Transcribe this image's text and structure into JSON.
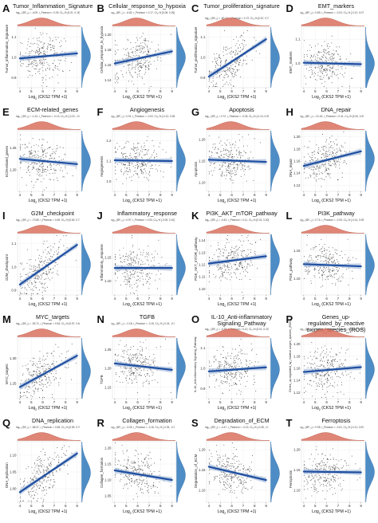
{
  "figure": {
    "xlabel_prefix": "Log",
    "xlabel_sub": "2",
    "xlabel_suffix": " (CKS2 TPM +1)",
    "colors": {
      "points": "#333333",
      "fit": "#1f4fa0",
      "ci": "#9fb6d8",
      "top_density": "#d9715f",
      "right_density": "#3b7fbf"
    }
  },
  "chart_data": [
    {
      "letter": "A",
      "type": "scatter",
      "title": "Tumor_Inflammation_Signature",
      "ylabel": "Tumor_Inflammation_Signature",
      "stat": "log₁₀ (BF₀₁) = -4.09, r_Pearson = 0.09, CI₉₅% [0.01, 0.18], n_pairs = 409",
      "xticks": [
        4,
        5,
        6,
        7,
        8,
        9
      ],
      "yticks": [
        "0.9",
        "1.0",
        "1.1"
      ],
      "ylim": [
        0.85,
        1.15
      ],
      "fit": [
        0.995,
        1.02
      ]
    },
    {
      "letter": "B",
      "type": "scatter",
      "title": "Cellular_response_to_hypoxia",
      "ylabel": "Cellular_response_to_hypoxia",
      "stat": "log₁₀ (BF₀₁) = -6.82, r_Pearson = 0.17, CI₉₅% [0.08, 0.26], n_pairs = 409",
      "xticks": [
        4,
        5,
        6,
        7,
        8,
        9
      ],
      "yticks": [
        "1.14",
        "1.16",
        "1.18",
        "1.20"
      ],
      "ylim": [
        1.13,
        1.21
      ],
      "fit": [
        1.162,
        1.178
      ]
    },
    {
      "letter": "C",
      "type": "scatter",
      "title": "Tumor_proliferation_signature",
      "ylabel": "Tumor_proliferation_signature",
      "stat": "log₁₀ (BF₀₁) = -80.12, r_Pearson = 0.72, CI₉₅% [0.67, 0.76], n_pairs = 409",
      "xticks": [
        4,
        5,
        6,
        7,
        8,
        9
      ],
      "yticks": [
        "0.9",
        "1.0",
        "1.1"
      ],
      "ylim": [
        0.85,
        1.15
      ],
      "fit": [
        0.905,
        1.09
      ]
    },
    {
      "letter": "D",
      "type": "scatter",
      "title": "EMT_markers",
      "ylabel": "EMT_markers",
      "stat": "log₁₀ (BF₀₁) = 0.89, r_Pearson = -0.03, CI₉₅% [-0.12, 0.07], n_pairs = 409",
      "xticks": [
        4,
        5,
        6,
        7,
        8,
        9
      ],
      "yticks": [
        "1.0",
        "1.1"
      ],
      "ylim": [
        0.9,
        1.15
      ],
      "fit": [
        1.003,
        0.997
      ]
    },
    {
      "letter": "E",
      "type": "scatter",
      "title": "ECM-related_genes",
      "ylabel": "ECM-related_genes",
      "stat": "log₁₀ (BF₀₁) = -1.24, r_Pearson = -0.13, CI₉₅% [-0.22, -0.03], n_pairs = 409",
      "xticks": [
        4,
        5,
        6,
        7,
        8,
        9
      ],
      "yticks": [
        "1.20",
        "1.25"
      ],
      "ylim": [
        1.15,
        1.29
      ],
      "fit": [
        1.225,
        1.213
      ]
    },
    {
      "letter": "F",
      "type": "scatter",
      "title": "Angiogenesis",
      "ylabel": "Angiogenesis",
      "stat": "log₁₀ (BF₀₁) = 0.91, r_Pearson = -0.02, CI₉₅% [-0.12, 0.08], n_pairs = 409",
      "xticks": [
        4,
        5,
        6,
        7,
        8,
        9
      ],
      "yticks": [
        "1.0",
        "1.1",
        "1.2"
      ],
      "ylim": [
        0.95,
        1.25
      ],
      "fit": [
        1.104,
        1.1
      ]
    },
    {
      "letter": "G",
      "type": "scatter",
      "title": "Apoptosis",
      "ylabel": "Apoptosis",
      "stat": "log₁₀ (BF₀₁) = 0.72, r_Pearson = -0.05, CI₉₅% [-0.14, 0.05], n_pairs = 409",
      "xticks": [
        4,
        5,
        6,
        7,
        8,
        9
      ],
      "yticks": [
        "1.10",
        "1.15",
        "1.20"
      ],
      "ylim": [
        1.08,
        1.22
      ],
      "fit": [
        1.153,
        1.148
      ]
    },
    {
      "letter": "H",
      "type": "scatter",
      "title": "DNA_repair",
      "ylabel": "DNA_repair",
      "stat": "log₁₀ (BF₀₁) = -21.43, r_Pearson = 0.41, CI₉₅% [0.33, 0.49], n_pairs = 409",
      "xticks": [
        4,
        5,
        6,
        7,
        8,
        9
      ],
      "yticks": [
        "1.12",
        "1.14",
        "1.16",
        "1.18",
        "1.20"
      ],
      "ylim": [
        1.11,
        1.21
      ],
      "fit": [
        1.152,
        1.176
      ]
    },
    {
      "letter": "I",
      "type": "scatter",
      "title": "G2M_checkpoint",
      "ylabel": "G2M_checkpoint",
      "stat": "log₁₀ (BF₀₁) = -70.85, r_Pearson = 0.69, CI₉₅% [0.63, 0.73], n_pairs = 409",
      "xticks": [
        4,
        5,
        6,
        7,
        8,
        9
      ],
      "yticks": [
        "0.9",
        "1.0",
        "1.1"
      ],
      "ylim": [
        0.88,
        1.14
      ],
      "fit": [
        0.925,
        1.095
      ]
    },
    {
      "letter": "J",
      "type": "scatter",
      "title": "Inflammatory_response",
      "ylabel": "Inflammatory_response",
      "stat": "log₁₀ (BF₀₁) = 0.97, r_Pearson = 0.00, CI₉₅% [-0.09, 0.10], n_pairs = 409",
      "xticks": [
        4,
        5,
        6,
        7,
        8,
        9
      ],
      "yticks": [
        "1.10",
        "1.15"
      ],
      "ylim": [
        1.07,
        1.2
      ],
      "fit": [
        1.128,
        1.128
      ]
    },
    {
      "letter": "K",
      "type": "scatter",
      "title": "PI3K_AKT_mTOR_pathway",
      "ylabel": "PI3K_AKT_mTOR_pathway",
      "stat": "log₁₀ (BF₀₁) = -0.43, r_Pearson = 0.11, CI₉₅% [0.01, 0.20], n_pairs = 409",
      "xticks": [
        4,
        5,
        6,
        7,
        8,
        9
      ],
      "yticks": [
        "1.10",
        "1.11",
        "1.12",
        "1.13",
        "1.14"
      ],
      "ylim": [
        1.095,
        1.145
      ],
      "fit": [
        1.121,
        1.127
      ]
    },
    {
      "letter": "L",
      "type": "scatter",
      "title": "PI3K_pathway",
      "ylabel": "PI3K_pathway",
      "stat": "log₁₀ (BF₀₁) = 0.74, r_Pearson = -0.05, CI₉₅% [-0.14, 0.05], n_pairs = 409",
      "xticks": [
        4,
        5,
        6,
        7,
        8,
        9
      ],
      "yticks": [
        "1.10",
        "1.15"
      ],
      "ylim": [
        1.07,
        1.18
      ],
      "fit": [
        1.126,
        1.122
      ]
    },
    {
      "letter": "M",
      "type": "scatter",
      "title": "MYC_targets",
      "ylabel": "MYC_targets",
      "stat": "log₁₀ (BF₀₁) = -53.71, r_Pearson = 0.63, CI₉₅% [0.57, 0.68], n_pairs = 409",
      "xticks": [
        4,
        5,
        6,
        7,
        8,
        9
      ],
      "yticks": [
        "1.25",
        "1.30"
      ],
      "ylim": [
        1.22,
        1.34
      ],
      "fit": [
        1.243,
        1.305
      ]
    },
    {
      "letter": "N",
      "type": "scatter",
      "title": "TGFB",
      "ylabel": "TGFB",
      "stat": "log₁₀ (BF₀₁) = -2.18, r_Pearson = -0.15, CI₉₅% [-0.24, -0.05], n_pairs = 409",
      "xticks": [
        4,
        5,
        6,
        7,
        8,
        9
      ],
      "yticks": [
        "1.15",
        "1.20",
        "1.25"
      ],
      "ylim": [
        1.12,
        1.28
      ],
      "fit": [
        1.213,
        1.196
      ]
    },
    {
      "letter": "O",
      "type": "scatter",
      "title": "IL-10_Anti-inflammatory Signaling_Pathway",
      "ylabel": "IL-10_Anti-inflammatory Signaling_Pathway",
      "stat": "log₁₀ (BF₀₁) = -0.28, r_Pearson = 0.10, CI₉₅% [0.01, 0.20], n_pairs = 409",
      "xticks": [
        4,
        5,
        6,
        7,
        8,
        9
      ],
      "yticks": [
        "0.9",
        "1.0",
        "1.1"
      ],
      "ylim": [
        0.85,
        1.15
      ],
      "fit": [
        0.985,
        1.005
      ]
    },
    {
      "letter": "P",
      "type": "scatter",
      "title": "Genes_up-regulated_by_reactive oxigen_species_(ROS)",
      "ylabel": "Genes_up-regulated_by_reactive oxigen_species_(ROS)",
      "stat": "log₁₀ (BF₀₁) = -0.61, r_Pearson = 0.12, CI₉₅% [0.02, 0.21], n_pairs = 409",
      "xticks": [
        4,
        5,
        6,
        7,
        8,
        9
      ],
      "yticks": [
        "1.12",
        "1.14",
        "1.16",
        "1.18",
        "1.20"
      ],
      "ylim": [
        1.11,
        1.21
      ],
      "fit": [
        1.154,
        1.162
      ]
    },
    {
      "letter": "Q",
      "type": "scatter",
      "title": "DNA_replication",
      "ylabel": "DNA_replication",
      "stat": "log₁₀ (BF₀₁) = -58.37, r_Pearson = 0.65, CI₉₅% [0.59, 0.70], n_pairs = 409",
      "xticks": [
        4,
        5,
        6,
        7,
        8,
        9
      ],
      "yticks": [
        "1.00",
        "1.05",
        "1.10"
      ],
      "ylim": [
        0.96,
        1.14
      ],
      "fit": [
        0.99,
        1.105
      ]
    },
    {
      "letter": "R",
      "type": "scatter",
      "title": "Collagen_formation",
      "ylabel": "Collagen_formation",
      "stat": "log₁₀ (BF₀₁) = -3.05, r_Pearson = -0.16, CI₉₅% [-0.25, -0.06], n_pairs = 409",
      "xticks": [
        4,
        5,
        6,
        7,
        8,
        9
      ],
      "yticks": [
        "1.05",
        "1.10",
        "1.15",
        "1.20"
      ],
      "ylim": [
        1.03,
        1.22
      ],
      "fit": [
        1.13,
        1.1
      ]
    },
    {
      "letter": "S",
      "type": "scatter",
      "title": "Degradation_of_ECM",
      "ylabel": "Degradation_of_ECM",
      "stat": "log₁₀ (BF₀₁) = -4.47, r_Pearson = -0.19, CI₉₅% [-0.28, -0.10], n_pairs = 409",
      "xticks": [
        4,
        5,
        6,
        7,
        8,
        9
      ],
      "yticks": [
        "1.10",
        "1.15",
        "1.20"
      ],
      "ylim": [
        1.07,
        1.22
      ],
      "fit": [
        1.158,
        1.125
      ]
    },
    {
      "letter": "T",
      "type": "scatter",
      "title": "Ferroptosis",
      "ylabel": "Ferroptosis",
      "stat": "log₁₀ (BF₀₁) = 0.95, r_Pearson = -0.01, CI₉₅% [-0.11, 0.09], n_pairs = 409",
      "xticks": [
        4,
        5,
        6,
        7,
        8,
        9
      ],
      "yticks": [
        "1.10",
        "1.15",
        "1.20"
      ],
      "ylim": [
        1.07,
        1.22
      ],
      "fit": [
        1.146,
        1.144
      ]
    }
  ]
}
